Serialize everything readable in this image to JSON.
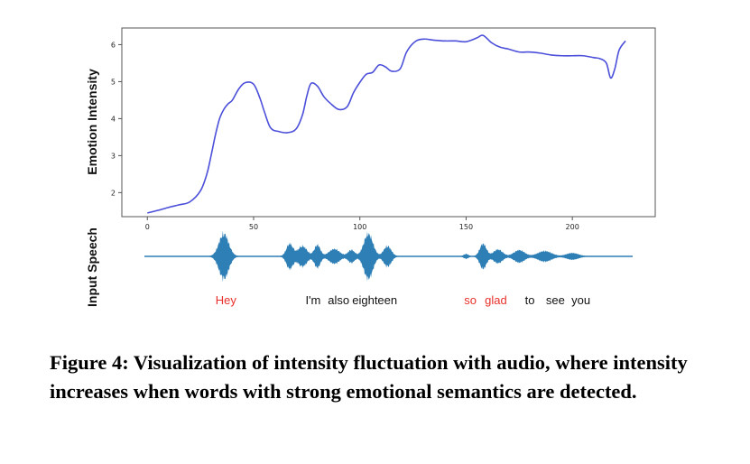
{
  "chart_data": {
    "type": "line",
    "ylabel": "Emotion Intensity",
    "xlim": [
      -12,
      239
    ],
    "ylim": [
      1.35,
      6.45
    ],
    "xticks": [
      0,
      50,
      100,
      150,
      200
    ],
    "yticks": [
      2,
      3,
      4,
      5,
      6
    ],
    "line_color": "#4b4fd9",
    "series": [
      {
        "x": [
          0,
          5,
          10,
          15,
          20,
          25,
          28,
          30,
          32,
          34,
          36,
          38,
          40,
          43,
          46,
          50,
          53,
          55,
          58,
          62,
          66,
          70,
          73,
          75,
          77,
          80,
          83,
          86,
          90,
          94,
          97,
          100,
          103,
          106,
          109,
          112,
          115,
          119,
          122,
          126,
          130,
          135,
          140,
          145,
          150,
          155,
          158,
          162,
          166,
          170,
          175,
          180,
          185,
          190,
          195,
          200,
          205,
          210,
          213,
          216,
          218,
          220,
          222,
          225
        ],
        "y": [
          1.45,
          1.52,
          1.6,
          1.67,
          1.75,
          2.05,
          2.5,
          3.0,
          3.55,
          4.0,
          4.25,
          4.4,
          4.5,
          4.8,
          4.97,
          4.93,
          4.55,
          4.2,
          3.75,
          3.65,
          3.62,
          3.72,
          4.1,
          4.6,
          4.95,
          4.88,
          4.6,
          4.42,
          4.25,
          4.32,
          4.7,
          4.98,
          5.2,
          5.25,
          5.45,
          5.4,
          5.28,
          5.35,
          5.8,
          6.08,
          6.15,
          6.12,
          6.1,
          6.1,
          6.08,
          6.18,
          6.25,
          6.05,
          5.93,
          5.88,
          5.8,
          5.8,
          5.77,
          5.72,
          5.7,
          5.7,
          5.7,
          5.65,
          5.62,
          5.5,
          5.1,
          5.35,
          5.85,
          6.1
        ]
      }
    ]
  },
  "speech": {
    "label": "Input Speech",
    "color": "#2e7fb6",
    "envelope": [
      {
        "x": 36,
        "amp": 1.0,
        "w": 3.2
      },
      {
        "x": 67,
        "amp": 0.55,
        "w": 2.2
      },
      {
        "x": 73,
        "amp": 0.45,
        "w": 3.0
      },
      {
        "x": 80,
        "amp": 0.5,
        "w": 2.0
      },
      {
        "x": 88,
        "amp": 0.32,
        "w": 3.5
      },
      {
        "x": 96,
        "amp": 0.28,
        "w": 2.2
      },
      {
        "x": 104,
        "amp": 1.0,
        "w": 3.0
      },
      {
        "x": 113,
        "amp": 0.45,
        "w": 2.5
      },
      {
        "x": 150,
        "amp": 0.1,
        "w": 1.5
      },
      {
        "x": 158,
        "amp": 0.55,
        "w": 2.2
      },
      {
        "x": 165,
        "amp": 0.3,
        "w": 3.0
      },
      {
        "x": 175,
        "amp": 0.27,
        "w": 3.5
      },
      {
        "x": 187,
        "amp": 0.23,
        "w": 4.5
      },
      {
        "x": 200,
        "amp": 0.14,
        "w": 4.0
      }
    ],
    "words": [
      {
        "text": "Hey",
        "x": 37,
        "color": "#e8302a"
      },
      {
        "text": "I'm",
        "x": 78,
        "color": "#111111"
      },
      {
        "text": "also",
        "x": 90,
        "color": "#111111"
      },
      {
        "text": "eighteen",
        "x": 107,
        "color": "#111111"
      },
      {
        "text": "so",
        "x": 152,
        "color": "#e8302a"
      },
      {
        "text": "glad",
        "x": 164,
        "color": "#e8302a"
      },
      {
        "text": "to",
        "x": 180,
        "color": "#111111"
      },
      {
        "text": "see",
        "x": 192,
        "color": "#111111"
      },
      {
        "text": "you",
        "x": 204,
        "color": "#111111"
      }
    ]
  },
  "caption": "Figure 4: Visualization of intensity fluctuation with audio, where intensity increases when words with strong emotional semantics are detected."
}
